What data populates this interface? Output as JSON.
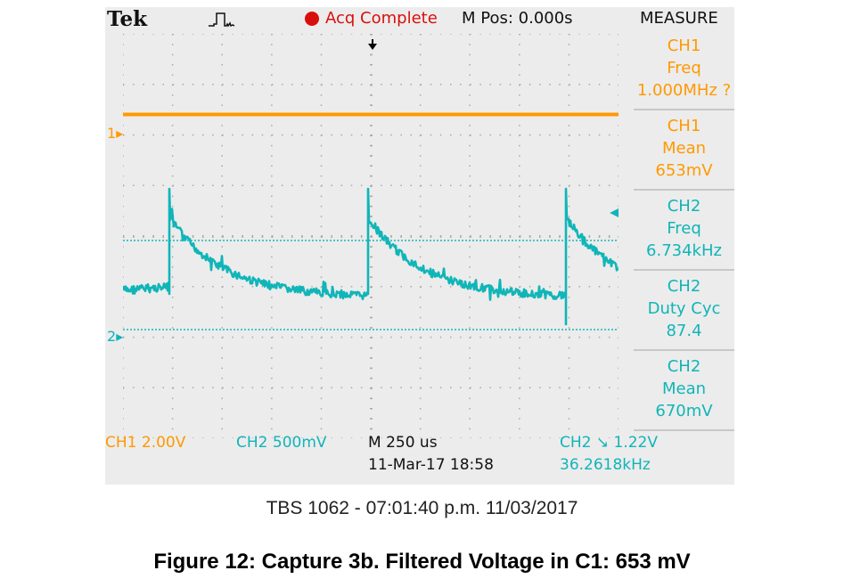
{
  "scope": {
    "brand": "Tek",
    "acq_status": "Acq Complete",
    "m_pos": "M Pos: 0.000s",
    "measure_title": "MEASURE",
    "ch1_marker": "1",
    "ch2_marker": "2",
    "measurements": [
      {
        "channel": "CH1",
        "name": "Freq",
        "value": "1.000MHz ?"
      },
      {
        "channel": "CH1",
        "name": "Mean",
        "value": "653mV"
      },
      {
        "channel": "CH2",
        "name": "Freq",
        "value": "6.734kHz"
      },
      {
        "channel": "CH2",
        "name": "Duty Cyc",
        "value": "87.4"
      },
      {
        "channel": "CH2",
        "name": "Mean",
        "value": "670mV"
      }
    ],
    "bottom": {
      "ch1_scale": "CH1  2.00V",
      "ch2_scale": "CH2  500mV",
      "timebase": "M 250 us",
      "timestamp": "11-Mar-17 18:58",
      "trigger_setting": "CH2 ↘ 1.22V",
      "trigger_freq": "36.2618kHz"
    }
  },
  "caption": {
    "instrument_line": "TBS 1062 - 07:01:40 p.m.   11/03/2017",
    "figure_title": "Figure 12: Capture 3b. Filtered Voltage in C1: 653 mV"
  },
  "colors": {
    "ch1": "#ff9900",
    "ch2": "#10b5b8",
    "acq": "#d8100c",
    "background": "#ececec"
  },
  "icons": [
    "trigger-waveform-icon",
    "acquisition-dot-icon",
    "trigger-position-arrow-icon",
    "ch1-marker-icon",
    "ch2-marker-icon",
    "trigger-level-arrow-icon",
    "falling-edge-icon"
  ]
}
